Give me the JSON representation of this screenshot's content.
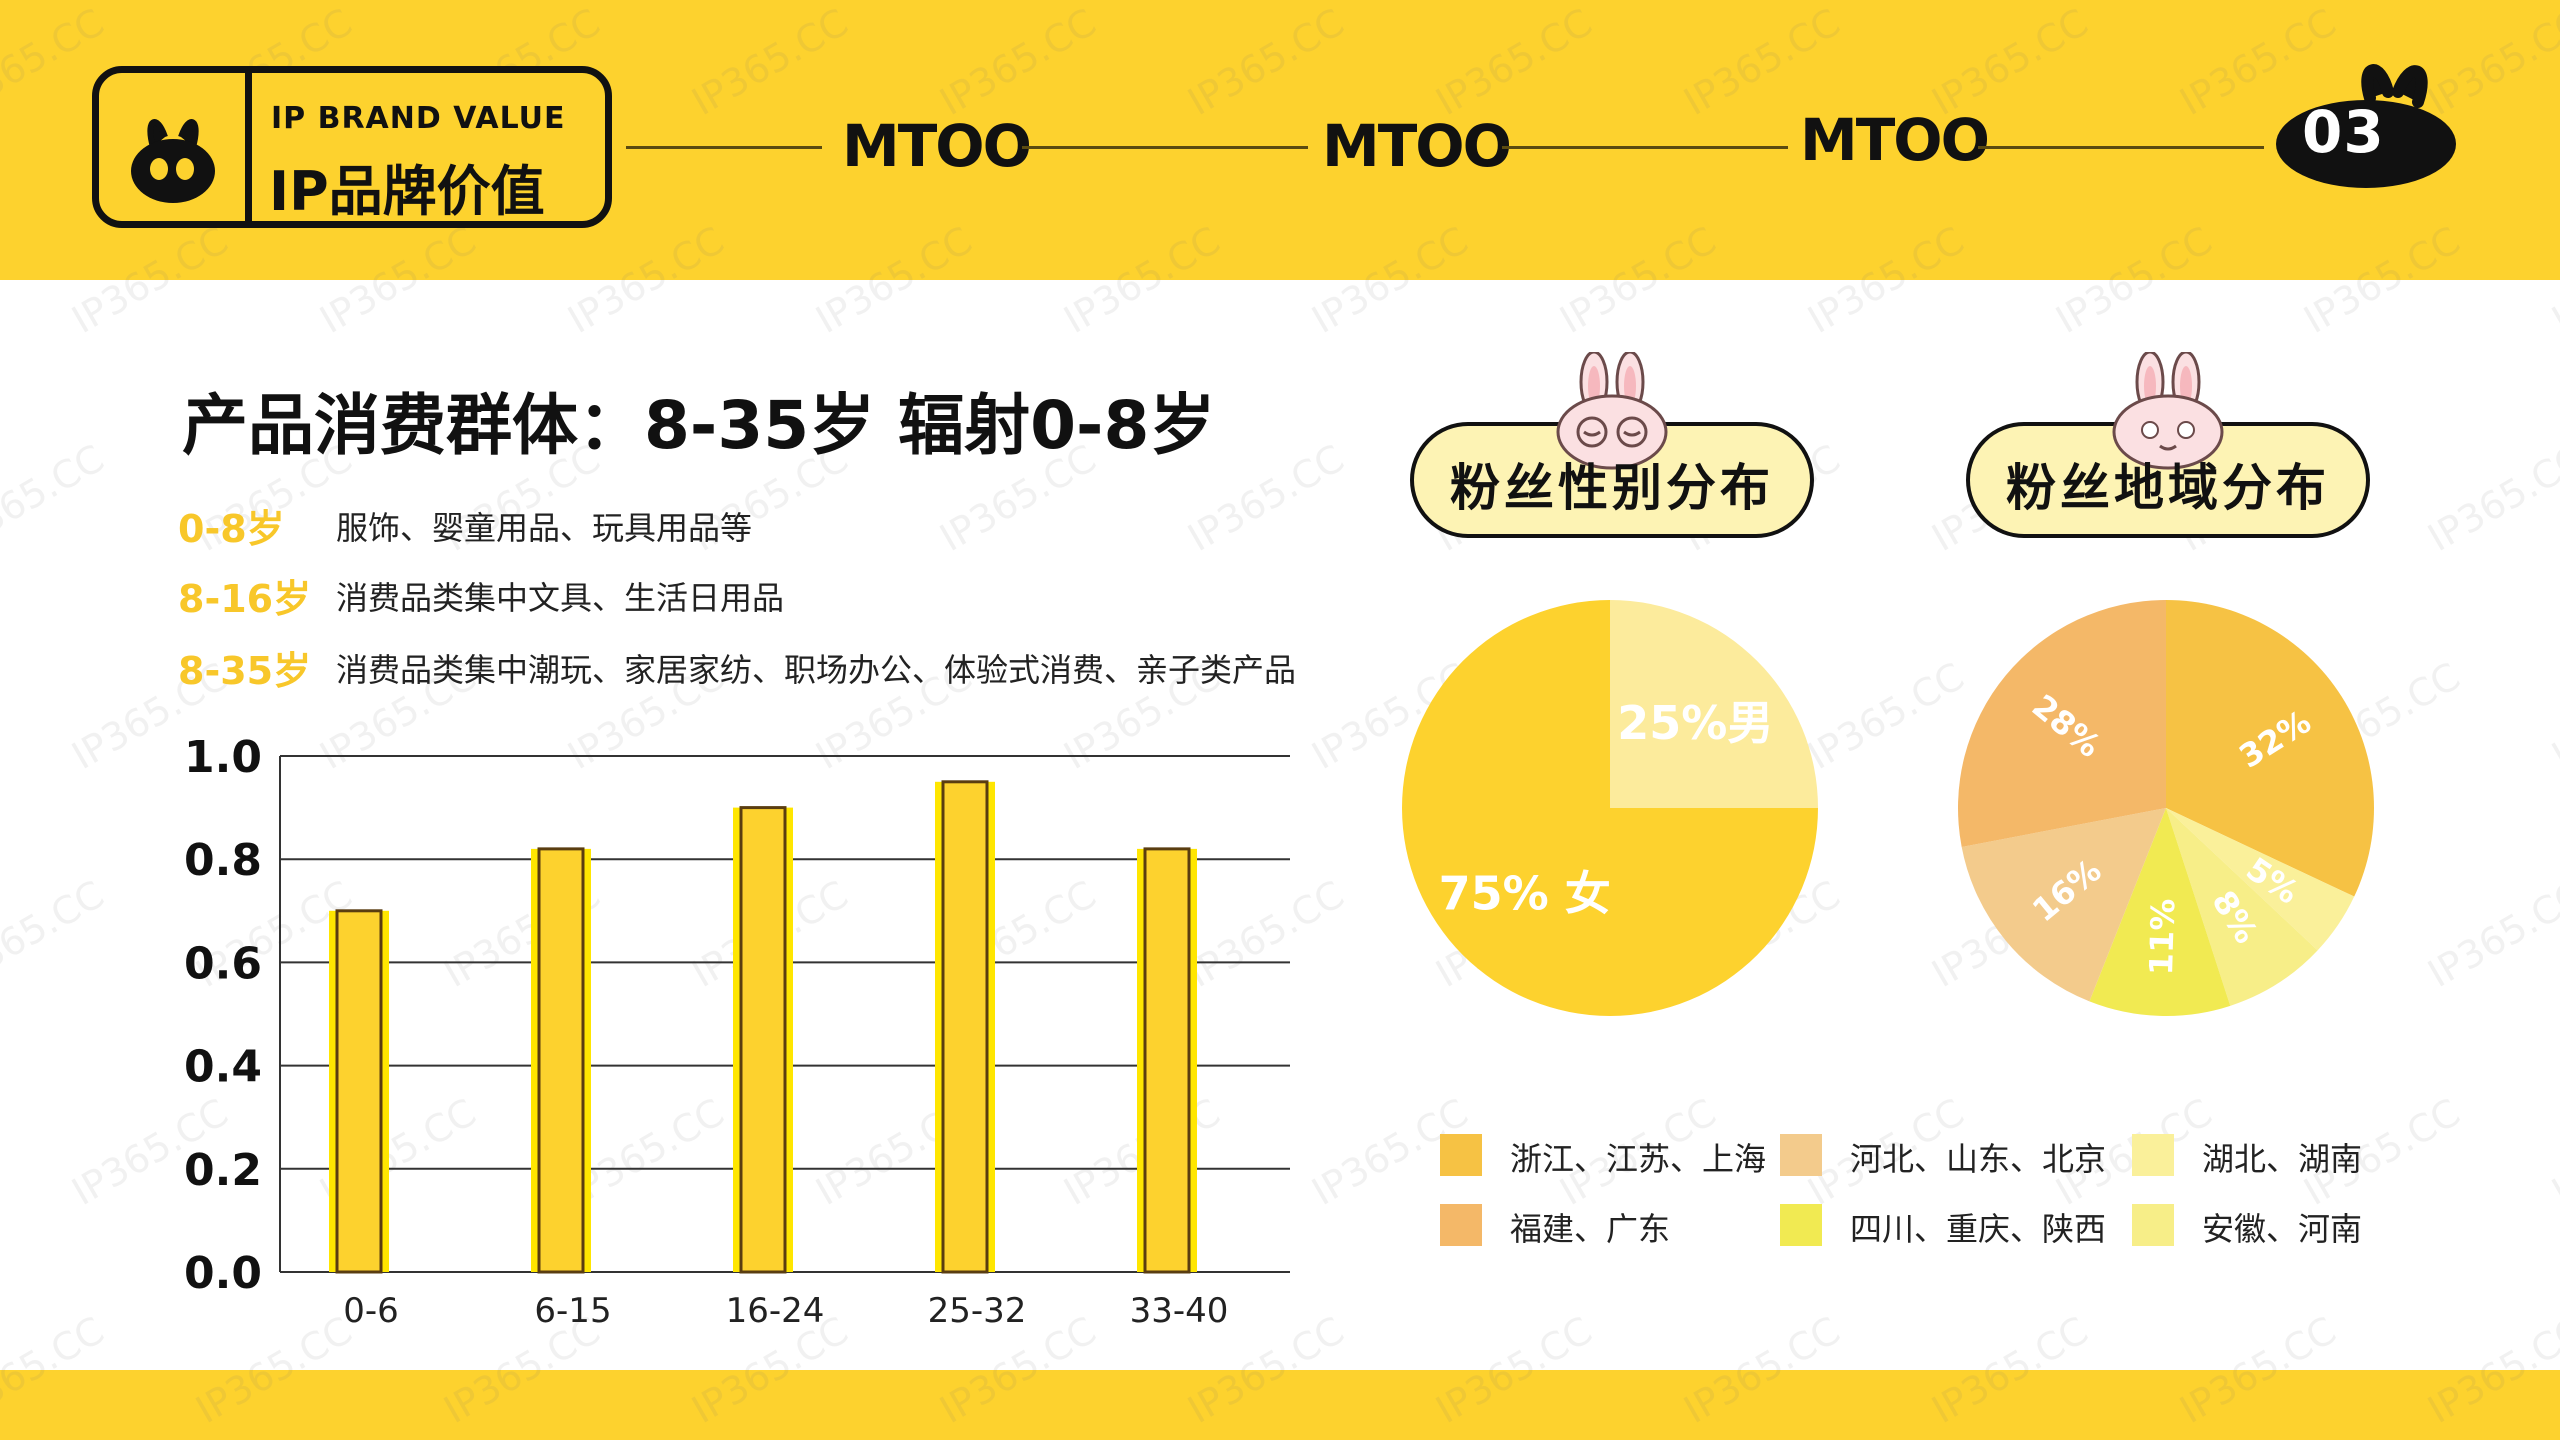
{
  "header": {
    "brand_en": "IP BRAND VALUE",
    "brand_cn": "IP品牌价值",
    "marks": [
      "MTOO",
      "MTOO",
      "MTOO"
    ],
    "page_number": "03"
  },
  "watermark_text": "IP365.CC",
  "left_panel": {
    "title": "产品消费群体：8-35岁  辐射0-8岁",
    "age_groups": [
      {
        "label": "0-8岁",
        "desc": "服饰、婴童用品、玩具用品等"
      },
      {
        "label": "8-16岁",
        "desc": "消费品类集中文具、生活日用品"
      },
      {
        "label": "8-35岁",
        "desc": "消费品类集中潮玩、家居家纺、职场办公、体验式消费、亲子类产品"
      }
    ]
  },
  "chart_data": [
    {
      "type": "bar",
      "categories": [
        "0-6",
        "6-15",
        "16-24",
        "25-32",
        "33-40"
      ],
      "values": [
        0.7,
        0.82,
        0.9,
        0.95,
        0.82
      ],
      "title": "",
      "xlabel": "",
      "ylabel": "",
      "ylim": [
        0,
        1.0
      ],
      "yticks": [
        "0.0",
        "0.2",
        "0.4",
        "0.6",
        "0.8",
        "1.0"
      ],
      "grid": true,
      "color": "#FDD22E"
    },
    {
      "type": "pie",
      "title": "粉丝性别分布",
      "slices": [
        {
          "label": "男",
          "value": 25,
          "text": "25%男",
          "color": "#FCEB9C"
        },
        {
          "label": "女",
          "value": 75,
          "text": "75%  女",
          "color": "#FDD22E"
        }
      ]
    },
    {
      "type": "pie",
      "title": "粉丝地域分布",
      "slices": [
        {
          "label": "浙江、江苏、上海",
          "value": 32,
          "text": "32%",
          "color": "#F6C244"
        },
        {
          "label": "湖北、湖南",
          "value": 5,
          "text": "5%",
          "color": "#FAF09A"
        },
        {
          "label": "安徽、河南",
          "value": 8,
          "text": "8%",
          "color": "#F7EE88"
        },
        {
          "label": "四川、重庆、陕西",
          "value": 11,
          "text": "11%",
          "color": "#F1EA52"
        },
        {
          "label": "河北、山东、北京",
          "value": 16,
          "text": "16%",
          "color": "#F3CB8C"
        },
        {
          "label": "福建、广东",
          "value": 28,
          "text": "28%",
          "color": "#F4B868"
        }
      ],
      "legend": [
        {
          "label": "浙江、江苏、上海",
          "color": "#F6C244"
        },
        {
          "label": "河北、山东、北京",
          "color": "#F3CB8C"
        },
        {
          "label": "湖北、湖南",
          "color": "#FAF09A"
        },
        {
          "label": "福建、广东",
          "color": "#F4B868"
        },
        {
          "label": "四川、重庆、陕西",
          "color": "#F1EA52"
        },
        {
          "label": "安徽、河南",
          "color": "#F7EE88"
        }
      ]
    }
  ]
}
